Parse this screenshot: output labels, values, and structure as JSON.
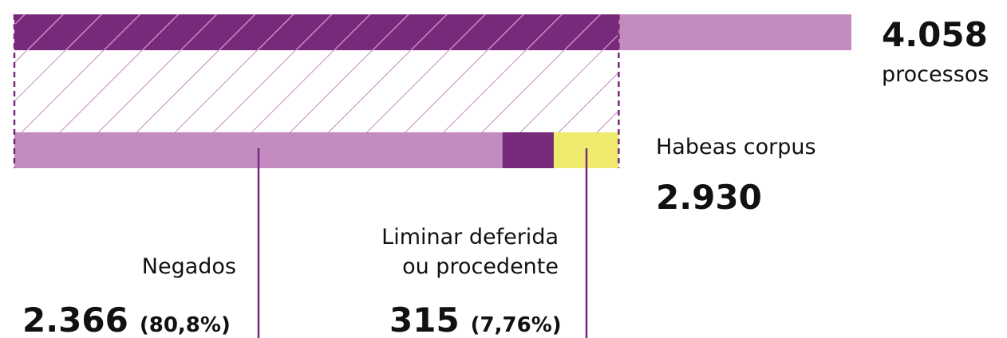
{
  "chart_data": {
    "type": "bar",
    "total": {
      "value": 4058,
      "label": "4.058",
      "unit": "processos",
      "color": "#c38bbf"
    },
    "subset": {
      "name": "Habeas corpus",
      "value": 2930,
      "label": "2.930",
      "color": "#772a7a"
    },
    "segments": [
      {
        "name": "Negados",
        "value": 2366,
        "label": "2.366",
        "percent": 80.8,
        "percent_label": "(80,8%)",
        "color": "#c38bbf"
      },
      {
        "value": 249,
        "color": "#772a7a"
      },
      {
        "name": [
          "Liminar deferida",
          "ou procedente"
        ],
        "value": 315,
        "label": "315",
        "percent": 7.76,
        "percent_label": "(7,76%)",
        "color": "#eeeb6e"
      }
    ]
  }
}
